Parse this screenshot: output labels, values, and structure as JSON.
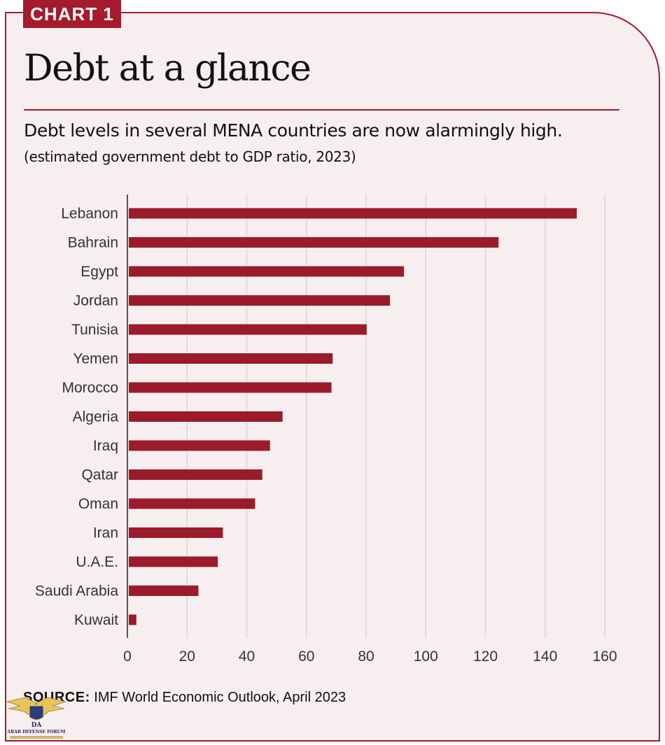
{
  "badge": "CHART 1",
  "title": "Debt at a glance",
  "subtitle": "Debt levels in several MENA countries are now alarmingly high.",
  "note": "(estimated government debt to GDP ratio, 2023)",
  "source_label": "SOURCE:",
  "source_text": "IMF World Economic Outlook, April 2023",
  "watermark": {
    "line1": "DA",
    "line2": "ARAB DEFENSE FORUM"
  },
  "colors": {
    "accent": "#a31b2c",
    "bar": "#9b1b2a",
    "background": "#f7eef0",
    "grid": "#dcd6d8"
  },
  "chart_data": {
    "type": "bar",
    "orientation": "horizontal",
    "categories": [
      "Lebanon",
      "Bahrain",
      "Egypt",
      "Jordan",
      "Tunisia",
      "Yemen",
      "Morocco",
      "Algeria",
      "Iraq",
      "Qatar",
      "Oman",
      "Iran",
      "U.A.E.",
      "Saudi Arabia",
      "Kuwait"
    ],
    "values": [
      150.6,
      124.4,
      92.7,
      88.0,
      80.2,
      68.8,
      68.4,
      52.0,
      47.8,
      45.2,
      42.8,
      32.0,
      30.3,
      23.8,
      3.0
    ],
    "xlim": [
      0,
      160
    ],
    "xticks": [
      0,
      20,
      40,
      60,
      80,
      100,
      120,
      140,
      160
    ],
    "grid": true,
    "legend": "none"
  }
}
